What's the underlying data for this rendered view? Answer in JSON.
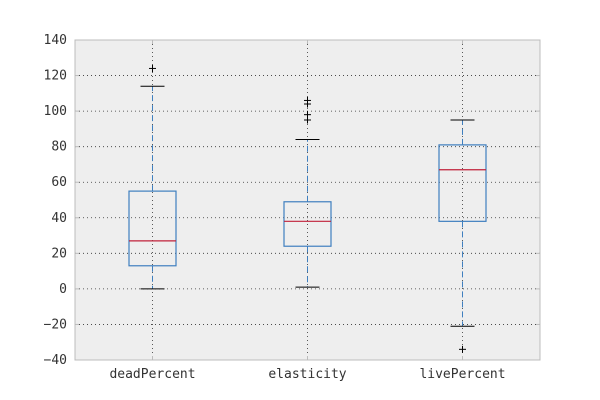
{
  "chart_data": {
    "type": "box",
    "categories": [
      "deadPercent",
      "elasticity",
      "livePercent"
    ],
    "ylim": [
      -40,
      140
    ],
    "y_ticks": [
      -40,
      -20,
      0,
      20,
      40,
      60,
      80,
      100,
      120,
      140
    ],
    "grid": true,
    "boxes": [
      {
        "name": "deadPercent",
        "whisker_low": 0,
        "q1": 13,
        "median": 27,
        "q3": 55,
        "whisker_high": 114,
        "outliers": [
          124
        ]
      },
      {
        "name": "elasticity",
        "whisker_low": 1,
        "q1": 24,
        "median": 38,
        "q3": 49,
        "whisker_high": 84,
        "outliers": [
          95,
          98,
          104,
          106
        ]
      },
      {
        "name": "livePercent",
        "whisker_low": -21,
        "q1": 38,
        "median": 67,
        "q3": 81,
        "whisker_high": 95,
        "outliers": [
          -34
        ]
      }
    ],
    "colors": {
      "box": "#3f7fbf",
      "median": "#c0213a",
      "whisker_cap": "#000000",
      "outlier": "#000000",
      "plot_background": "#eeeeee",
      "axes_border": "#bcbcbc",
      "grid": "#333333"
    }
  }
}
